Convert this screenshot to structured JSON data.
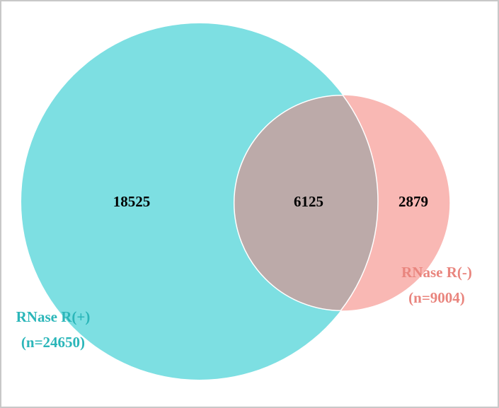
{
  "chart_data": {
    "type": "venn",
    "sets": [
      {
        "name": "RNase R(+)",
        "size": 24650,
        "size_label": "(n=24650)",
        "color": "#7ddfe2",
        "label_color": "#2bb6b9"
      },
      {
        "name": "RNase R(-)",
        "size": 9004,
        "size_label": "(n=9004)",
        "color": "#f9b8b4",
        "label_color": "#e9857e"
      }
    ],
    "regions": [
      "RNase R(+) only",
      "both",
      "RNase R(-) only"
    ],
    "values": [
      18525,
      6125,
      2879
    ],
    "overlap_color": "#bcaaa9"
  }
}
